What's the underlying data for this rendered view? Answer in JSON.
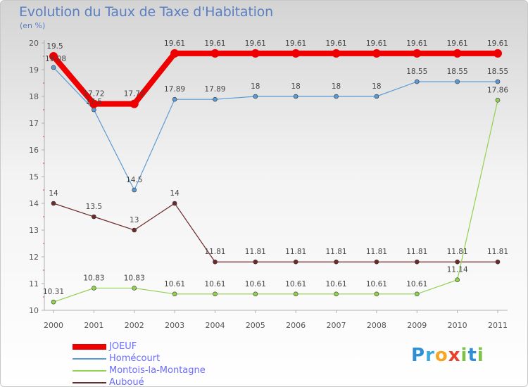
{
  "title": "Evolution du Taux de Taxe d'Habitation",
  "subtitle": "(en %)",
  "logo_letters": [
    {
      "ch": "P",
      "color": "#2f8fd6"
    },
    {
      "ch": "r",
      "color": "#3aa7e0"
    },
    {
      "ch": "o",
      "color": "#f5a623"
    },
    {
      "ch": "x",
      "color": "#e8412c"
    },
    {
      "ch": "i",
      "color": "#7cc243"
    },
    {
      "ch": "t",
      "color": "#2f8fd6"
    },
    {
      "ch": "i",
      "color": "#7cc243"
    }
  ],
  "chart_data": {
    "type": "line",
    "x": [
      "2000",
      "2001",
      "2002",
      "2003",
      "2004",
      "2005",
      "2006",
      "2007",
      "2008",
      "2009",
      "2010",
      "2011"
    ],
    "ylim": [
      10,
      20
    ],
    "yticks": [
      "10",
      "11",
      "12",
      "13",
      "14",
      "15",
      "16",
      "17",
      "18",
      "19",
      "20"
    ],
    "grid": false,
    "legend_position": "bottom-left",
    "series": [
      {
        "name": "JOEUF",
        "color": "#ee0000",
        "values": [
          19.5,
          17.72,
          17.72,
          19.61,
          19.61,
          19.61,
          19.61,
          19.61,
          19.61,
          19.61,
          19.61,
          19.61
        ],
        "labels": [
          "19.5",
          "17.72",
          "17.72",
          "19.61",
          "19.61",
          "19.61",
          "19.61",
          "19.61",
          "19.61",
          "19.61",
          "19.61",
          "19.61"
        ]
      },
      {
        "name": "Homécourt",
        "color": "#5b9bd5",
        "values": [
          19.08,
          17.5,
          14.5,
          17.89,
          17.89,
          18,
          18,
          18,
          18,
          18.55,
          18.55,
          18.55
        ],
        "labels": [
          "19.08",
          "17.5",
          "14.5",
          "17.89",
          "17.89",
          "18",
          "18",
          "18",
          "18",
          "18.55",
          "18.55",
          "18.55"
        ]
      },
      {
        "name": "Montois-la-Montagne",
        "color": "#92d050",
        "values": [
          10.31,
          10.83,
          10.83,
          10.61,
          10.61,
          10.61,
          10.61,
          10.61,
          10.61,
          10.61,
          11.14,
          17.86
        ],
        "labels": [
          "10.31",
          "10.83",
          "10.83",
          "10.61",
          "10.61",
          "10.61",
          "10.61",
          "10.61",
          "10.61",
          "10.61",
          "11.14",
          "17.86"
        ]
      },
      {
        "name": "Auboué",
        "color": "#6e2a2a",
        "values": [
          14,
          13.5,
          13,
          14,
          11.81,
          11.81,
          11.81,
          11.81,
          11.81,
          11.81,
          11.81,
          11.81
        ],
        "labels": [
          "14",
          "13.5",
          "13",
          "14",
          "11.81",
          "11.81",
          "11.81",
          "11.81",
          "11.81",
          "11.81",
          "11.81",
          "11.81"
        ]
      }
    ]
  }
}
